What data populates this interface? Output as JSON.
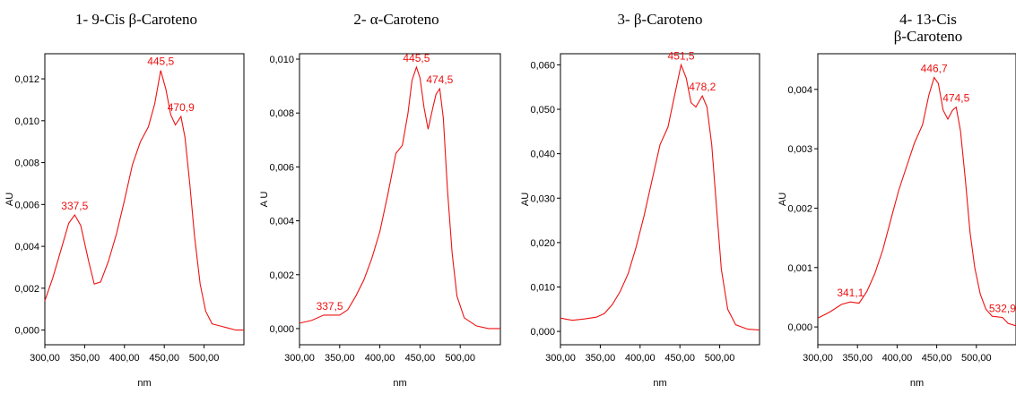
{
  "chart_data": [
    {
      "type": "line",
      "title": "1- 9-Cis β-Caroteno",
      "xlabel": "nm",
      "ylabel": "AU",
      "xlim": [
        300,
        550
      ],
      "ylim": [
        -0.0007,
        0.0132
      ],
      "xticks": [
        300,
        350,
        400,
        450,
        500
      ],
      "xtick_labels": [
        "300,00",
        "350,00",
        "400,00",
        "450,00",
        "500,00"
      ],
      "yticks": [
        0,
        0.002,
        0.004,
        0.006,
        0.008,
        0.01,
        0.012
      ],
      "ytick_labels": [
        "0,000",
        "0,002",
        "0,004",
        "0,006",
        "0,008",
        "0,010",
        "0,012"
      ],
      "x": [
        300,
        310,
        320,
        330,
        337.5,
        345,
        355,
        362,
        370,
        380,
        390,
        400,
        410,
        420,
        430,
        438,
        445.5,
        452,
        458,
        464,
        470.9,
        476,
        482,
        488,
        495,
        502,
        510,
        520,
        530,
        540,
        550
      ],
      "y": [
        0.0014,
        0.0025,
        0.0038,
        0.0051,
        0.0055,
        0.005,
        0.0033,
        0.0022,
        0.0023,
        0.0033,
        0.0046,
        0.0062,
        0.0079,
        0.009,
        0.0097,
        0.0108,
        0.0124,
        0.0115,
        0.0103,
        0.0098,
        0.0102,
        0.0092,
        0.007,
        0.0045,
        0.0022,
        0.0009,
        0.0003,
        0.0002,
        0.0001,
        0.0,
        0.0
      ],
      "annotations": [
        {
          "x": 337.5,
          "y": 0.0055,
          "text": "337,5"
        },
        {
          "x": 445.5,
          "y": 0.0124,
          "text": "445,5"
        },
        {
          "x": 470.9,
          "y": 0.0102,
          "text": "470,9"
        }
      ]
    },
    {
      "type": "line",
      "title": "2- α-Caroteno",
      "xlabel": "nm",
      "ylabel": "A U",
      "xlim": [
        300,
        550
      ],
      "ylim": [
        -0.0006,
        0.0102
      ],
      "xticks": [
        300,
        350,
        400,
        450,
        500
      ],
      "xtick_labels": [
        "300,00",
        "350,00",
        "400,00",
        "450,00",
        "500,00"
      ],
      "yticks": [
        0,
        0.002,
        0.004,
        0.006,
        0.008,
        0.01
      ],
      "ytick_labels": [
        "0,000",
        "0,002",
        "0,004",
        "0,006",
        "0,008",
        "0,010"
      ],
      "x": [
        300,
        315,
        330,
        337.5,
        350,
        360,
        370,
        380,
        390,
        400,
        410,
        420,
        428,
        435,
        440,
        445.5,
        450,
        455,
        460,
        466,
        470,
        474.5,
        479,
        484,
        490,
        496,
        505,
        520,
        535,
        550
      ],
      "y": [
        0.0002,
        0.0003,
        0.0005,
        0.0005,
        0.0005,
        0.0007,
        0.0012,
        0.0018,
        0.0026,
        0.0036,
        0.005,
        0.0065,
        0.0068,
        0.008,
        0.0092,
        0.0097,
        0.0093,
        0.0082,
        0.0074,
        0.0082,
        0.0087,
        0.0089,
        0.0078,
        0.0052,
        0.0028,
        0.0012,
        0.0004,
        0.0001,
        0.0,
        0.0
      ],
      "annotations": [
        {
          "x": 337.5,
          "y": 0.0005,
          "text": "337,5"
        },
        {
          "x": 445.5,
          "y": 0.0097,
          "text": "445,5"
        },
        {
          "x": 474.5,
          "y": 0.0089,
          "text": "474,5"
        }
      ]
    },
    {
      "type": "line",
      "title": "3- β-Caroteno",
      "xlabel": "nm",
      "ylabel": "AU",
      "xlim": [
        300,
        550
      ],
      "ylim": [
        -0.003,
        0.0625
      ],
      "xticks": [
        300,
        350,
        400,
        450,
        500
      ],
      "xtick_labels": [
        "300,00",
        "350,00",
        "400,00",
        "450,00",
        "500,00"
      ],
      "yticks": [
        0,
        0.01,
        0.02,
        0.03,
        0.04,
        0.05,
        0.06
      ],
      "ytick_labels": [
        "0,000",
        "0,010",
        "0,020",
        "0,030",
        "0,040",
        "0,050",
        "0,060"
      ],
      "x": [
        300,
        315,
        330,
        345,
        355,
        365,
        375,
        385,
        395,
        405,
        415,
        425,
        435,
        442,
        451.5,
        458,
        464,
        470,
        478.2,
        484,
        490,
        496,
        502,
        510,
        520,
        535,
        550
      ],
      "y": [
        0.003,
        0.0025,
        0.0028,
        0.0032,
        0.004,
        0.006,
        0.009,
        0.013,
        0.019,
        0.026,
        0.034,
        0.042,
        0.046,
        0.052,
        0.06,
        0.057,
        0.0515,
        0.0505,
        0.053,
        0.0505,
        0.042,
        0.028,
        0.014,
        0.005,
        0.0015,
        0.0005,
        0.0003
      ],
      "annotations": [
        {
          "x": 451.5,
          "y": 0.06,
          "text": "451,5"
        },
        {
          "x": 478.2,
          "y": 0.053,
          "text": "478,2"
        }
      ]
    },
    {
      "type": "line",
      "title": "4- 13-Cis β-Caroteno",
      "xlabel": "nm",
      "ylabel": "AU",
      "xlim": [
        300,
        550
      ],
      "ylim": [
        -0.0003,
        0.0046
      ],
      "xticks": [
        300,
        350,
        400,
        450,
        500
      ],
      "xtick_labels": [
        "300,00",
        "350,00",
        "400,00",
        "450,00",
        "500,00"
      ],
      "yticks": [
        0,
        0.001,
        0.002,
        0.003,
        0.004
      ],
      "ytick_labels": [
        "0,000",
        "0,001",
        "0,002",
        "0,003",
        "0,004"
      ],
      "x": [
        300,
        315,
        330,
        341.1,
        352,
        362,
        372,
        382,
        392,
        402,
        412,
        422,
        432,
        440,
        446.7,
        452,
        458,
        464,
        470,
        474.5,
        480,
        486,
        492,
        498,
        505,
        512,
        520,
        532.9,
        540,
        550
      ],
      "y": [
        0.00015,
        0.00025,
        0.00038,
        0.00042,
        0.0004,
        0.0006,
        0.0009,
        0.0013,
        0.0018,
        0.0023,
        0.0027,
        0.0031,
        0.0034,
        0.0039,
        0.0042,
        0.0041,
        0.00365,
        0.0035,
        0.00365,
        0.0037,
        0.0033,
        0.0025,
        0.0016,
        0.001,
        0.00055,
        0.0003,
        0.00018,
        0.00016,
        6e-05,
        2e-05
      ],
      "annotations": [
        {
          "x": 341.1,
          "y": 0.00042,
          "text": "341,1"
        },
        {
          "x": 446.7,
          "y": 0.0042,
          "text": "446,7"
        },
        {
          "x": 474.5,
          "y": 0.0037,
          "text": "474,5"
        },
        {
          "x": 532.9,
          "y": 0.00016,
          "text": "532,9"
        }
      ]
    }
  ],
  "colors": {
    "trace": "#ee1111",
    "frame": "#000000",
    "background": "#ffffff"
  }
}
